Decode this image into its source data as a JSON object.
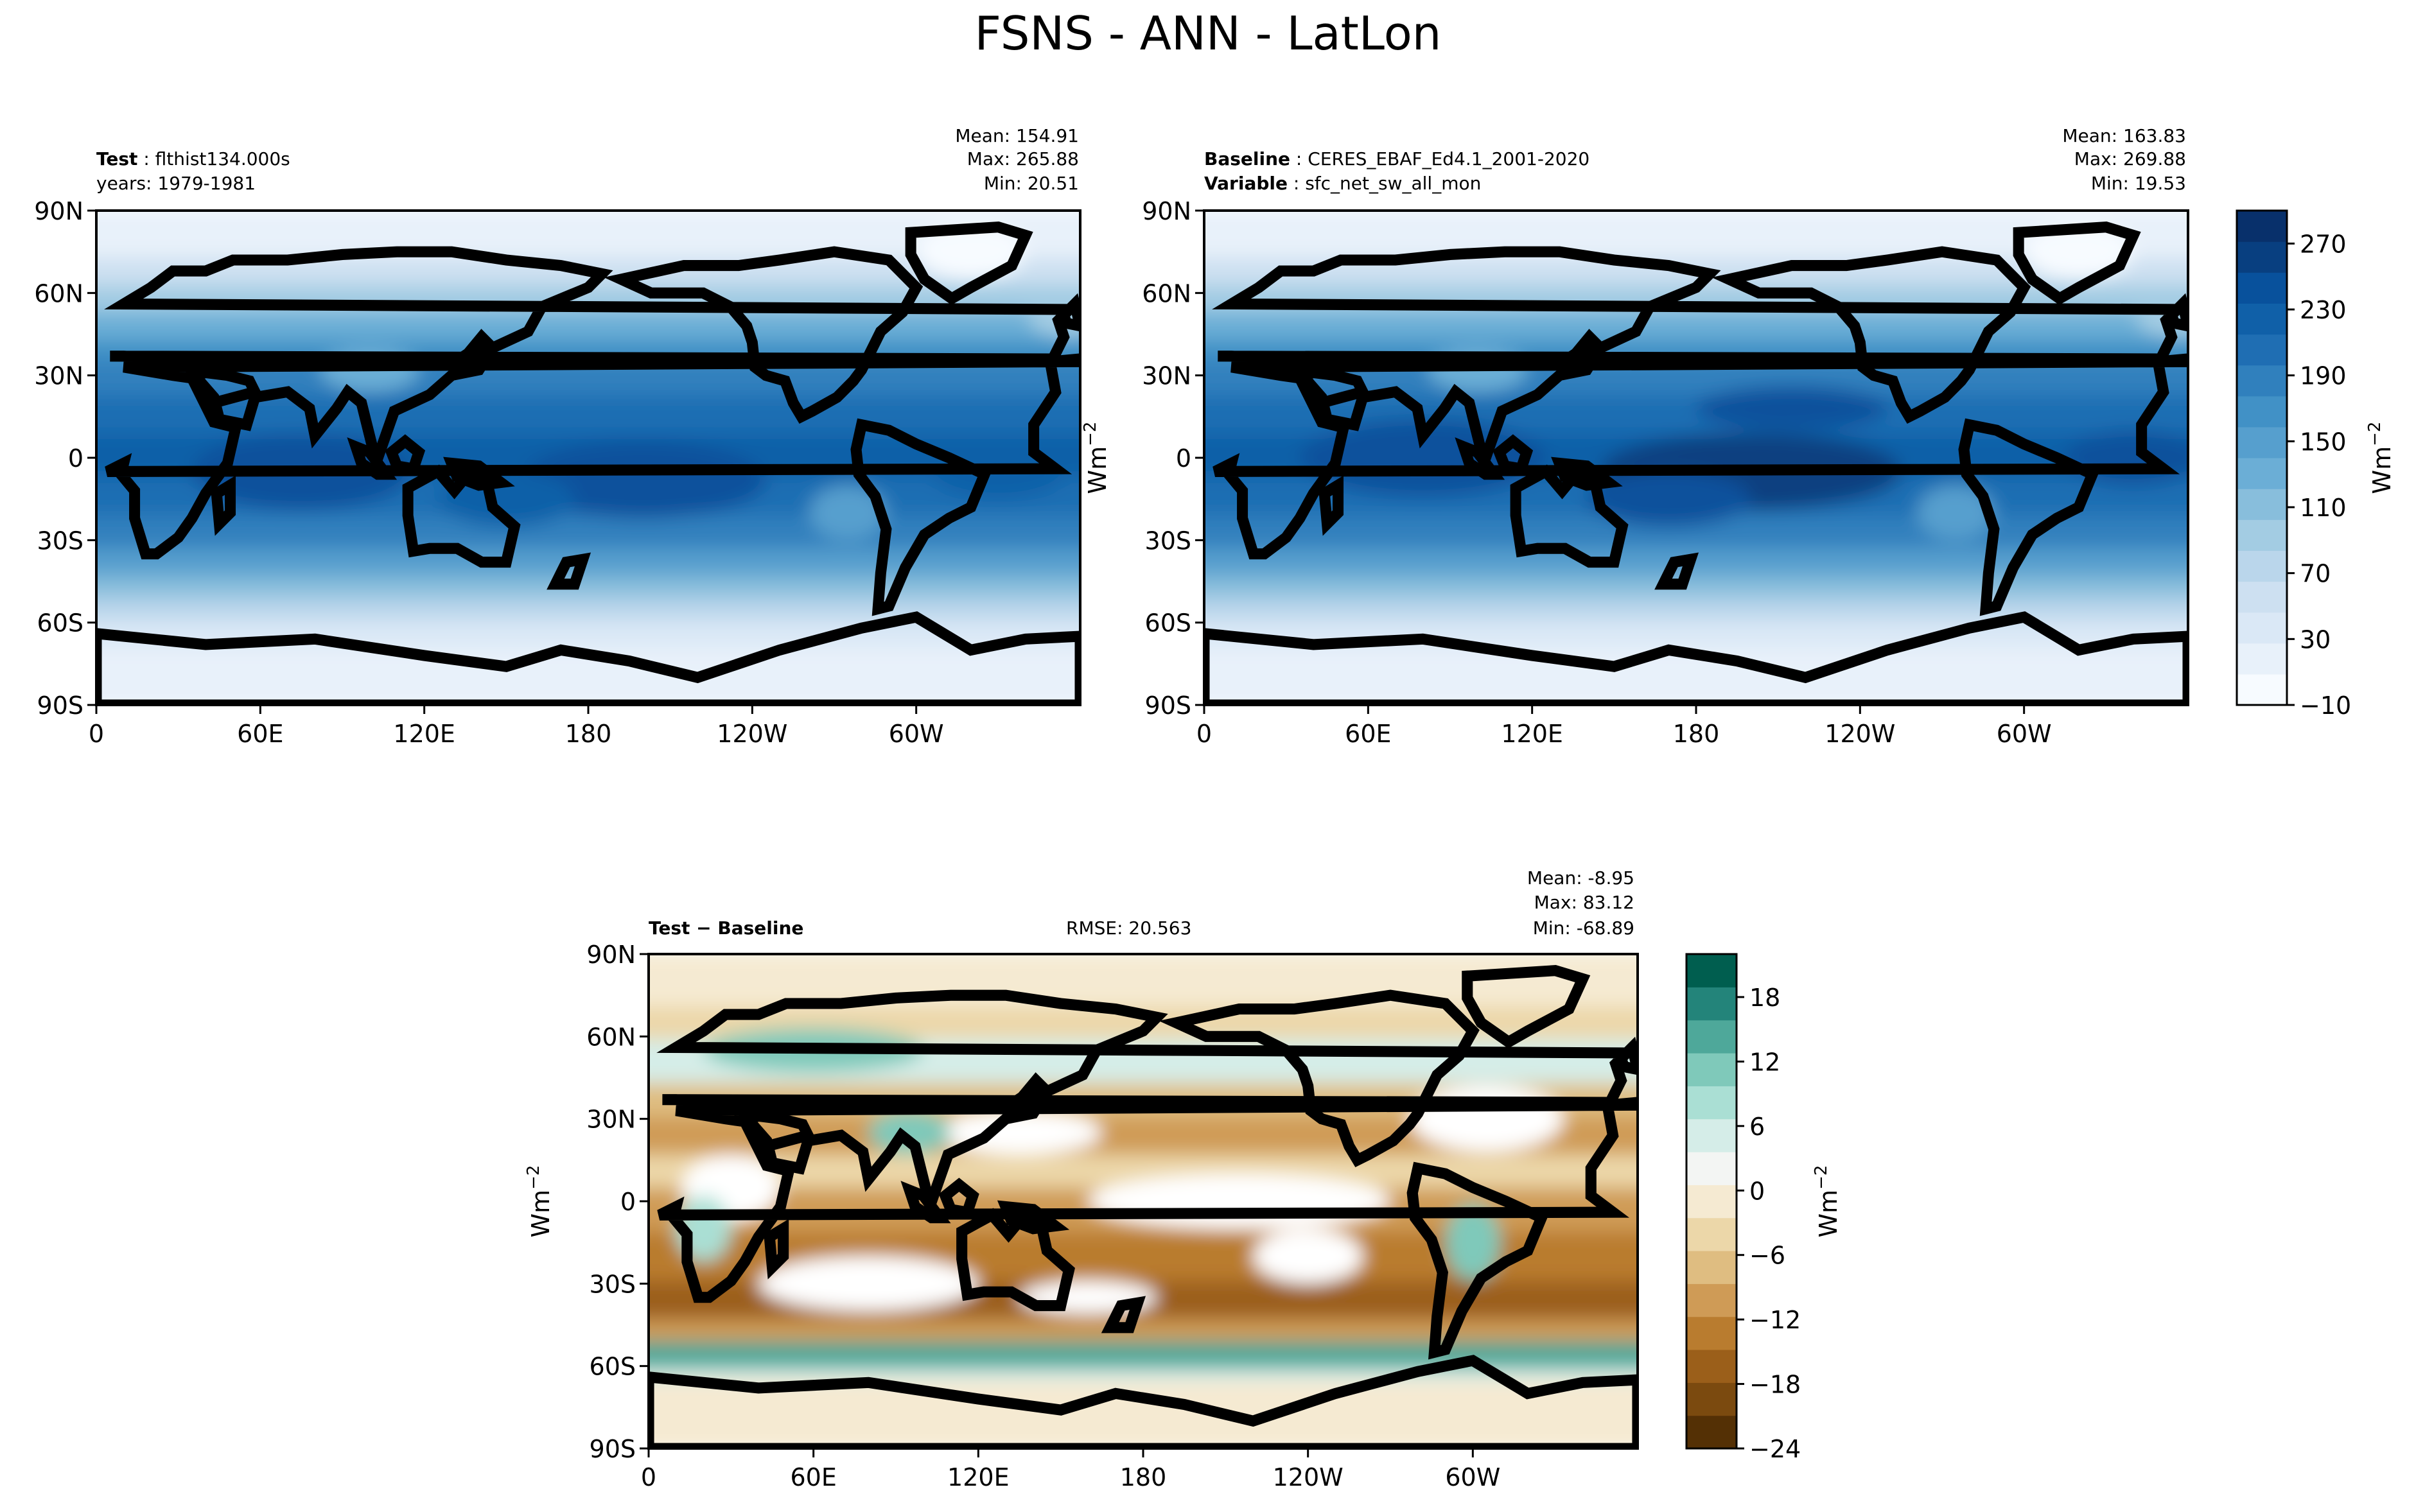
{
  "figure": {
    "title": "FSNS - ANN - LatLon"
  },
  "panels": {
    "test": {
      "label_bold": "Test",
      "label_text": "flthist134.000s",
      "years": "years: 1979-1981",
      "mean": "Mean: 154.91",
      "max": "Max: 265.88",
      "min": "Min: 20.51"
    },
    "baseline": {
      "label_bold": "Baseline",
      "label_text": "CERES_EBAF_Ed4.1_2001-2020",
      "var_bold": "Variable",
      "var_text": "sfc_net_sw_all_mon",
      "mean": "Mean: 163.83",
      "max": "Max: 269.88",
      "min": "Min: 19.53"
    },
    "diff": {
      "label": "Test − Baseline",
      "rmse": "RMSE: 20.563",
      "mean": "Mean: -8.95",
      "max": "Max: 83.12",
      "min": "Min: -68.89"
    }
  },
  "chart_data": [
    {
      "type": "heatmap",
      "name": "Test",
      "xlabel": "",
      "ylabel": "",
      "x_ticks": [
        "0",
        "60E",
        "120E",
        "180",
        "120W",
        "60W"
      ],
      "y_ticks": [
        "90N",
        "60N",
        "30N",
        "0",
        "30S",
        "60S",
        "90S"
      ],
      "x_range_deg": [
        0,
        360
      ],
      "y_range_deg": [
        -90,
        90
      ],
      "stats": {
        "mean": 154.91,
        "max": 265.88,
        "min": 20.51
      },
      "colorscale": "Blues"
    },
    {
      "type": "heatmap",
      "name": "Baseline",
      "x_ticks": [
        "0",
        "60E",
        "120E",
        "180",
        "120W",
        "60W"
      ],
      "y_ticks": [
        "90N",
        "60N",
        "30N",
        "0",
        "30S",
        "60S",
        "90S"
      ],
      "x_range_deg": [
        0,
        360
      ],
      "y_range_deg": [
        -90,
        90
      ],
      "stats": {
        "mean": 163.83,
        "max": 269.88,
        "min": 19.53
      },
      "colorscale": "Blues",
      "colorbar": {
        "label": "Wm",
        "label_exp": "−2",
        "ticks": [
          "−10",
          "30",
          "70",
          "110",
          "150",
          "190",
          "230",
          "270"
        ],
        "range": [
          -10,
          290
        ],
        "levels": 16,
        "colors": [
          "#f7fbff",
          "#e8f1fa",
          "#dae8f6",
          "#cde0f1",
          "#bad6eb",
          "#a3cce3",
          "#88bedc",
          "#6baed6",
          "#569fce",
          "#4191c6",
          "#3080bd",
          "#1f6eb3",
          "#1060a8",
          "#08519c",
          "#083f80",
          "#08306b"
        ]
      }
    },
    {
      "type": "heatmap",
      "name": "Test − Baseline",
      "x_ticks": [
        "0",
        "60E",
        "120E",
        "180",
        "120W",
        "60W"
      ],
      "y_ticks": [
        "90N",
        "60N",
        "30N",
        "0",
        "30S",
        "60S",
        "90S"
      ],
      "x_range_deg": [
        0,
        360
      ],
      "y_range_deg": [
        -90,
        90
      ],
      "stats": {
        "mean": -8.95,
        "max": 83.12,
        "min": -68.89,
        "rmse": 20.563
      },
      "colorscale": "BrBG",
      "colorbar": {
        "label": "Wm",
        "label_exp": "−2",
        "ticks": [
          "−24",
          "−18",
          "−12",
          "−6",
          "0",
          "6",
          "12",
          "18"
        ],
        "range": [
          -24,
          22
        ],
        "levels": 15,
        "colors": [
          "#543005",
          "#7b4a0f",
          "#9b5f1a",
          "#b97c2f",
          "#cf9b56",
          "#dfbd81",
          "#ecd7a9",
          "#f5ead2",
          "#f3f5f3",
          "#d5ede8",
          "#aadfd4",
          "#7fc9ba",
          "#4ea89a",
          "#23847a",
          "#005e4f"
        ]
      }
    }
  ],
  "colors": {
    "axis": "#000000",
    "coast": "#000000",
    "ocean_white": "#ffffff"
  }
}
